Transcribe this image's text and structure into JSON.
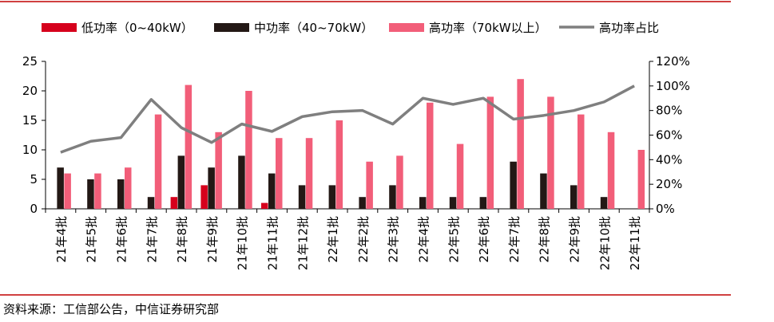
{
  "chart_data": {
    "type": "bar",
    "categories": [
      "21年4批",
      "21年5批",
      "21年6批",
      "21年7批",
      "21年8批",
      "21年9批",
      "21年10批",
      "21年11批",
      "21年12批",
      "22年1批",
      "22年2批",
      "22年3批",
      "22年4批",
      "22年5批",
      "22年6批",
      "22年7批",
      "22年8批",
      "22年9批",
      "22年10批",
      "22年11批"
    ],
    "series": [
      {
        "name": "低功率（0~40kW）",
        "kind": "bar",
        "axis": "left",
        "color": "#d6001c",
        "values": [
          0,
          0,
          0,
          0,
          2,
          4,
          0,
          1,
          0,
          0,
          0,
          0,
          0,
          0,
          0,
          0,
          0,
          0,
          0,
          0
        ]
      },
      {
        "name": "中功率（40~70kW）",
        "kind": "bar",
        "axis": "left",
        "color": "#231815",
        "values": [
          7,
          5,
          5,
          2,
          9,
          7,
          9,
          6,
          4,
          4,
          2,
          4,
          2,
          2,
          2,
          8,
          6,
          4,
          2,
          0
        ]
      },
      {
        "name": "高功率（70kW以上）",
        "kind": "bar",
        "axis": "left",
        "color": "#f25e79",
        "values": [
          6,
          6,
          7,
          16,
          21,
          13,
          20,
          12,
          12,
          15,
          8,
          9,
          18,
          11,
          19,
          22,
          19,
          16,
          13,
          10
        ]
      },
      {
        "name": "高功率占比",
        "kind": "line",
        "axis": "right",
        "color": "#7f7f7f",
        "values": [
          0.46,
          0.55,
          0.58,
          0.89,
          0.66,
          0.54,
          0.69,
          0.63,
          0.75,
          0.79,
          0.8,
          0.69,
          0.9,
          0.85,
          0.9,
          0.73,
          0.76,
          0.8,
          0.87,
          1.0
        ]
      }
    ],
    "y_left": {
      "min": 0,
      "max": 25,
      "ticks": [
        "0",
        "5",
        "10",
        "15",
        "20",
        "25"
      ]
    },
    "y_right": {
      "min": 0,
      "max": 1.2,
      "ticks": [
        "0%",
        "20%",
        "40%",
        "60%",
        "80%",
        "100%",
        "120%"
      ]
    },
    "grid": false,
    "legend_position": "top"
  },
  "source": "资料来源：工信部公告，中信证券研究部"
}
